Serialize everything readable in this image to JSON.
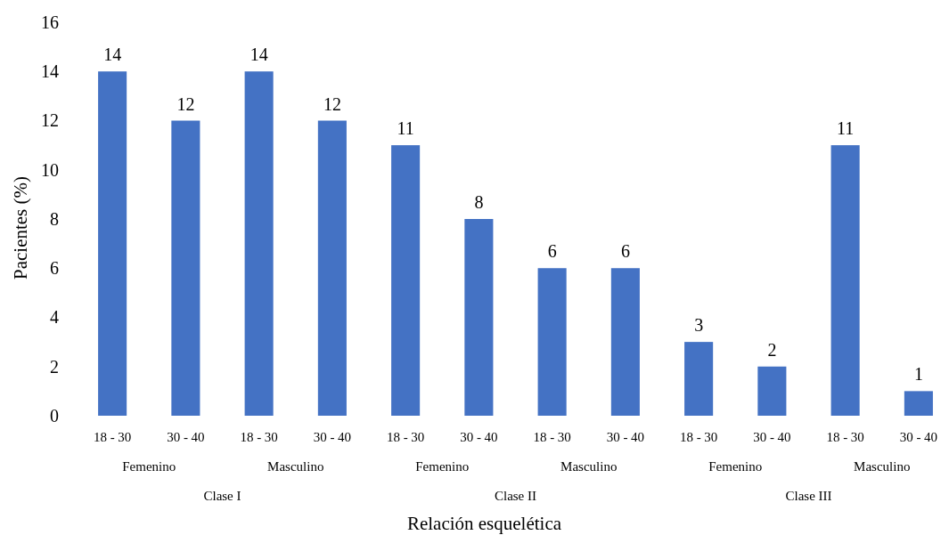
{
  "chart_data": {
    "type": "bar",
    "xlabel": "Relación esquelética",
    "ylabel": "Pacientes (%)",
    "categories": [
      "18 - 30",
      "30 - 40",
      "18 - 30",
      "30 - 40",
      "18 - 30",
      "30 - 40",
      "18 - 30",
      "30 - 40",
      "18 - 30",
      "30 - 40",
      "18 - 30",
      "30 - 40"
    ],
    "values": [
      14,
      12,
      14,
      12,
      11,
      8,
      6,
      6,
      3,
      2,
      11,
      1
    ],
    "color": "#4472c4",
    "ylim": [
      0,
      16
    ],
    "yticks": [
      0,
      2,
      4,
      6,
      8,
      10,
      12,
      14,
      16
    ],
    "data_labels": true,
    "annotations": [
      "Femenino",
      "Masculino",
      "Femenino",
      "Masculino",
      "Femenino",
      "Masculino",
      "Clase I",
      "Clase II",
      "Clase III"
    ]
  }
}
